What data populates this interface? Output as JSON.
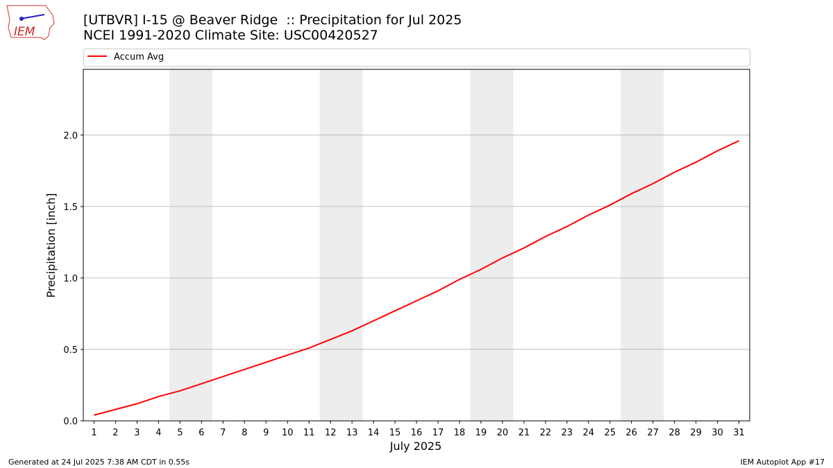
{
  "logo_text": "IEM",
  "footer_left": "Generated at 24 Jul 2025 7:38 AM CDT in 0.55s",
  "footer_right": "IEM Autoplot App #17",
  "chart_data": {
    "type": "line",
    "title": "[UTBVR] I-15 @ Beaver Ridge  :: Precipitation for Jul 2025",
    "subtitle": "NCEI 1991-2020 Climate Site: USC00420527",
    "x_label": "July 2025",
    "y_label": "Precipitation [inch]",
    "x": [
      1,
      2,
      3,
      4,
      5,
      6,
      7,
      8,
      9,
      10,
      11,
      12,
      13,
      14,
      15,
      16,
      17,
      18,
      19,
      20,
      21,
      22,
      23,
      24,
      25,
      26,
      27,
      28,
      29,
      30,
      31
    ],
    "series": [
      {
        "name": "Accum Avg",
        "color": "#ff0000",
        "values": [
          0.04,
          0.08,
          0.12,
          0.17,
          0.21,
          0.26,
          0.31,
          0.36,
          0.41,
          0.46,
          0.51,
          0.57,
          0.63,
          0.7,
          0.77,
          0.84,
          0.91,
          0.99,
          1.06,
          1.14,
          1.21,
          1.29,
          1.36,
          1.44,
          1.51,
          1.59,
          1.66,
          1.74,
          1.81,
          1.89,
          1.96
        ]
      }
    ],
    "shaded_ranges": [
      [
        4.5,
        6.5
      ],
      [
        11.5,
        13.5
      ],
      [
        18.5,
        20.5
      ],
      [
        25.5,
        27.5
      ]
    ],
    "shade_color": "#ededed",
    "xlim": [
      0.5,
      31.5
    ],
    "xticks": [
      1,
      2,
      3,
      4,
      5,
      6,
      7,
      8,
      9,
      10,
      11,
      12,
      13,
      14,
      15,
      16,
      17,
      18,
      19,
      20,
      21,
      22,
      23,
      24,
      25,
      26,
      27,
      28,
      29,
      30,
      31
    ],
    "ylim": [
      0,
      2.46
    ],
    "yticks": [
      {
        "value": 0,
        "label": "0.0"
      },
      {
        "value": 0.5,
        "label": "0.5"
      },
      {
        "value": 1,
        "label": "1.0"
      },
      {
        "value": 1.5,
        "label": "1.5"
      },
      {
        "value": 2,
        "label": "2.0"
      }
    ],
    "grid": "y",
    "legend": "top"
  }
}
